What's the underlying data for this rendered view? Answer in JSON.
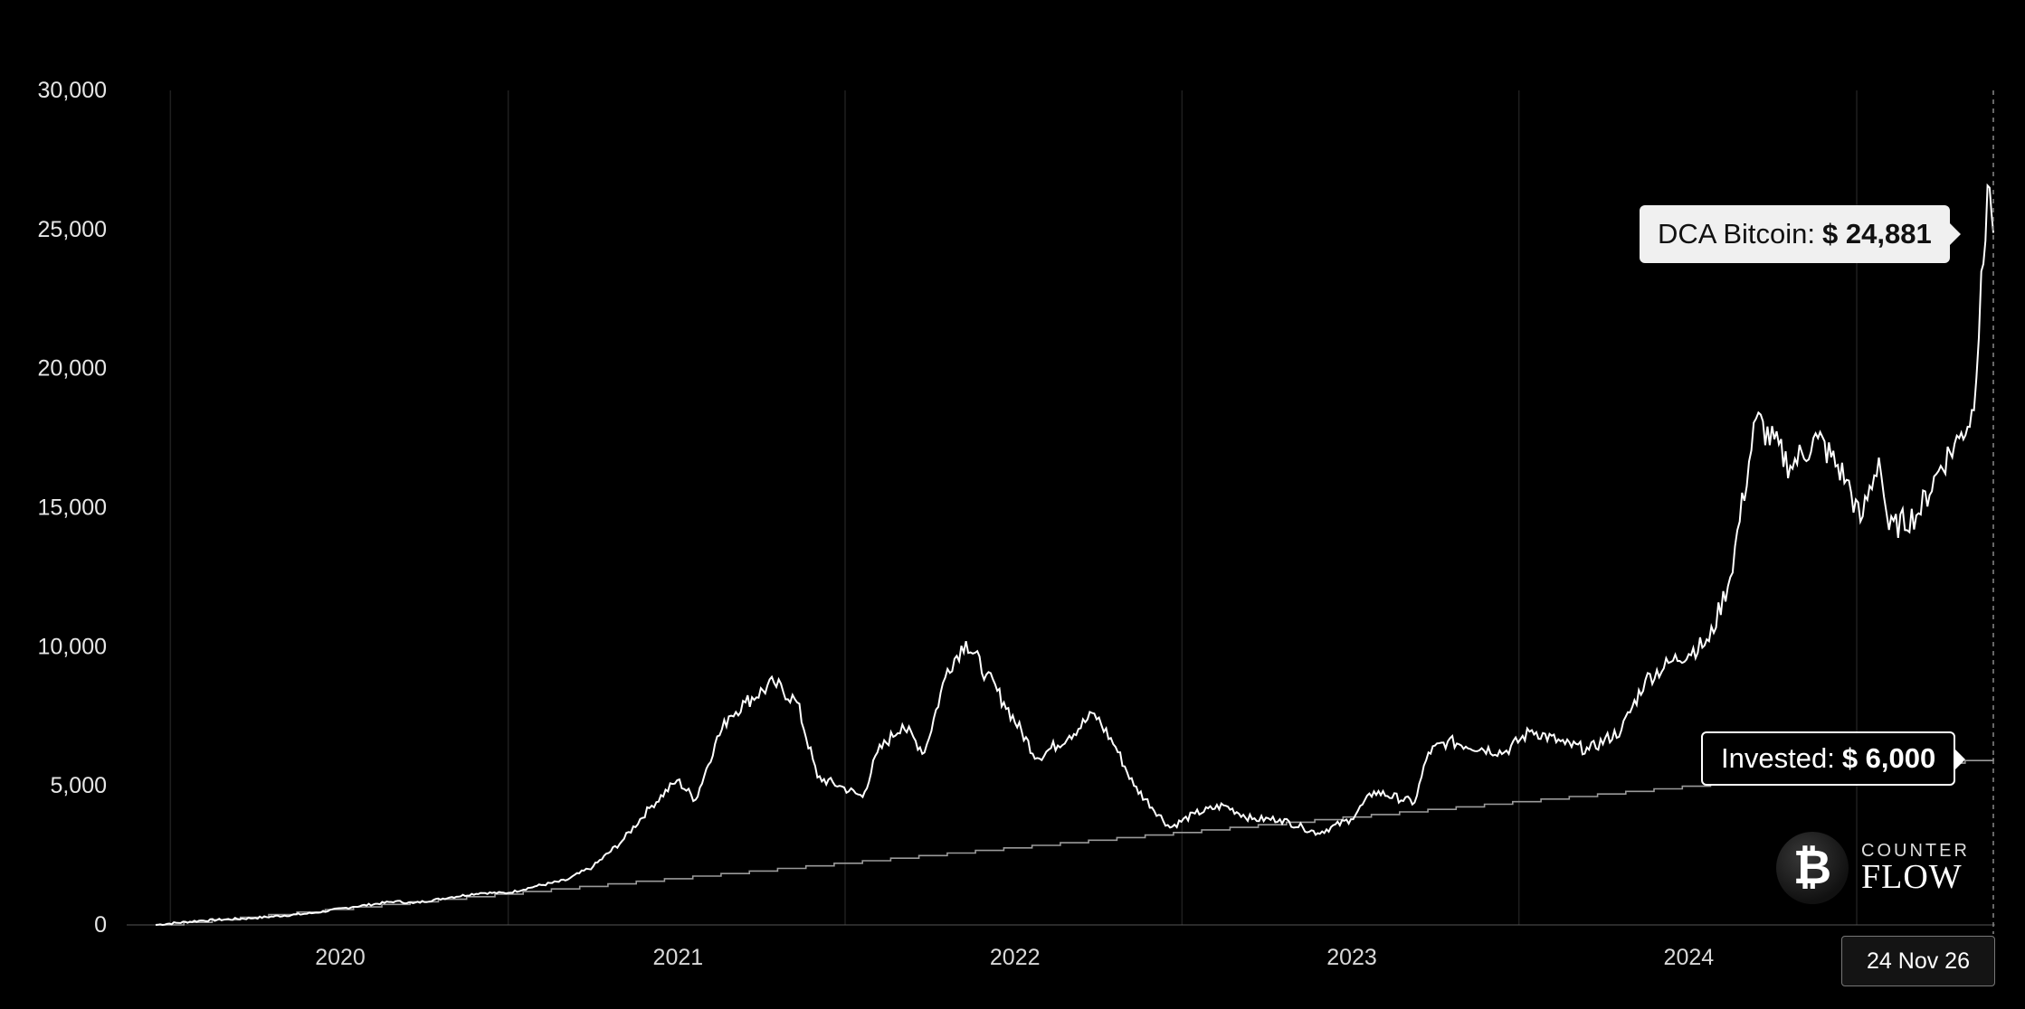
{
  "chart_data": {
    "type": "line",
    "title": "",
    "xlabel": "",
    "ylabel": "",
    "ylim": [
      0,
      30000
    ],
    "yticks": [
      "0",
      "5,000",
      "10,000",
      "15,000",
      "20,000",
      "25,000",
      "30,000"
    ],
    "xticks": [
      "2020",
      "2021",
      "2022",
      "2023",
      "2024"
    ],
    "xrange": [
      "2019-06-15",
      "2024-11-26"
    ],
    "grid": "vertical",
    "series": [
      {
        "name": "DCA Bitcoin",
        "color": "#ffffff",
        "points": [
          [
            "2019-06-15",
            0
          ],
          [
            "2019-08-01",
            150
          ],
          [
            "2019-10-01",
            250
          ],
          [
            "2019-12-01",
            420
          ],
          [
            "2020-01-15",
            650
          ],
          [
            "2020-03-01",
            850
          ],
          [
            "2020-03-20",
            780
          ],
          [
            "2020-05-01",
            1000
          ],
          [
            "2020-06-01",
            1150
          ],
          [
            "2020-07-01",
            1150
          ],
          [
            "2020-08-01",
            1400
          ],
          [
            "2020-09-01",
            1600
          ],
          [
            "2020-10-01",
            2100
          ],
          [
            "2020-11-01",
            3000
          ],
          [
            "2020-12-01",
            4200
          ],
          [
            "2020-12-31",
            5200
          ],
          [
            "2021-01-20",
            4500
          ],
          [
            "2021-02-10",
            6500
          ],
          [
            "2021-02-25",
            7500
          ],
          [
            "2021-03-15",
            8000
          ],
          [
            "2021-04-15",
            8700
          ],
          [
            "2021-05-10",
            8000
          ],
          [
            "2021-06-01",
            5300
          ],
          [
            "2021-06-25",
            5000
          ],
          [
            "2021-07-20",
            4600
          ],
          [
            "2021-08-05",
            6200
          ],
          [
            "2021-09-01",
            7200
          ],
          [
            "2021-09-25",
            6200
          ],
          [
            "2021-10-20",
            9200
          ],
          [
            "2021-11-09",
            10200
          ],
          [
            "2021-12-01",
            9000
          ],
          [
            "2021-12-20",
            8000
          ],
          [
            "2022-01-25",
            6000
          ],
          [
            "2022-03-01",
            6800
          ],
          [
            "2022-03-28",
            7600
          ],
          [
            "2022-04-20",
            6400
          ],
          [
            "2022-05-10",
            5000
          ],
          [
            "2022-06-18",
            3500
          ],
          [
            "2022-07-15",
            4000
          ],
          [
            "2022-08-15",
            4300
          ],
          [
            "2022-09-15",
            3800
          ],
          [
            "2022-10-15",
            3800
          ],
          [
            "2022-11-09",
            3500
          ],
          [
            "2022-11-25",
            3300
          ],
          [
            "2022-12-31",
            3800
          ],
          [
            "2023-01-25",
            4800
          ],
          [
            "2023-03-10",
            4400
          ],
          [
            "2023-03-25",
            6200
          ],
          [
            "2023-04-15",
            6600
          ],
          [
            "2023-06-15",
            6200
          ],
          [
            "2023-07-15",
            7000
          ],
          [
            "2023-08-20",
            6500
          ],
          [
            "2023-09-15",
            6300
          ],
          [
            "2023-10-20",
            7000
          ],
          [
            "2023-11-15",
            8800
          ],
          [
            "2023-12-15",
            9500
          ],
          [
            "2024-01-23",
            10200
          ],
          [
            "2024-02-15",
            12500
          ],
          [
            "2024-03-14",
            18200
          ],
          [
            "2024-04-20",
            16500
          ],
          [
            "2024-05-20",
            17500
          ],
          [
            "2024-06-20",
            16000
          ],
          [
            "2024-07-05",
            14500
          ],
          [
            "2024-07-25",
            16800
          ],
          [
            "2024-08-05",
            14200
          ],
          [
            "2024-09-06",
            14800
          ],
          [
            "2024-09-30",
            16500
          ],
          [
            "2024-10-20",
            17500
          ],
          [
            "2024-11-05",
            18500
          ],
          [
            "2024-11-13",
            23500
          ],
          [
            "2024-11-22",
            26500
          ],
          [
            "2024-11-26",
            24881
          ]
        ]
      },
      {
        "name": "Invested",
        "color": "#9a9a9a",
        "points": [
          [
            "2019-06-15",
            0
          ],
          [
            "2024-11-26",
            6000
          ]
        ],
        "step": "monthly"
      }
    ]
  },
  "tooltips": {
    "dca_label": "DCA Bitcoin:",
    "dca_value": "$ 24,881",
    "invested_label": "Invested:",
    "invested_value": "$ 6,000"
  },
  "crosshair_date": "24 Nov 26",
  "logo": {
    "top": "COUNTER",
    "bottom": "FLOW",
    "coin_symbol": "₿",
    "icon": "bitcoin-icon"
  }
}
